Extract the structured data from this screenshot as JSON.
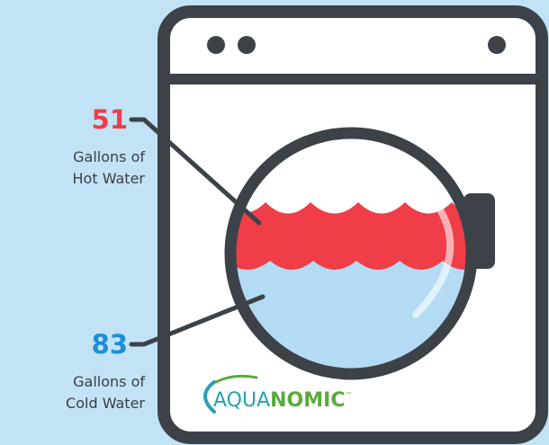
{
  "hot": {
    "number": 51,
    "line1": "Gallons of",
    "line2": "Hot Water"
  },
  "cold": {
    "number": 83,
    "line1": "Gallons of",
    "line2": "Cold Water"
  },
  "logo": {
    "part1": "AQUA",
    "part2": "NOMIC",
    "mark": "™"
  }
}
